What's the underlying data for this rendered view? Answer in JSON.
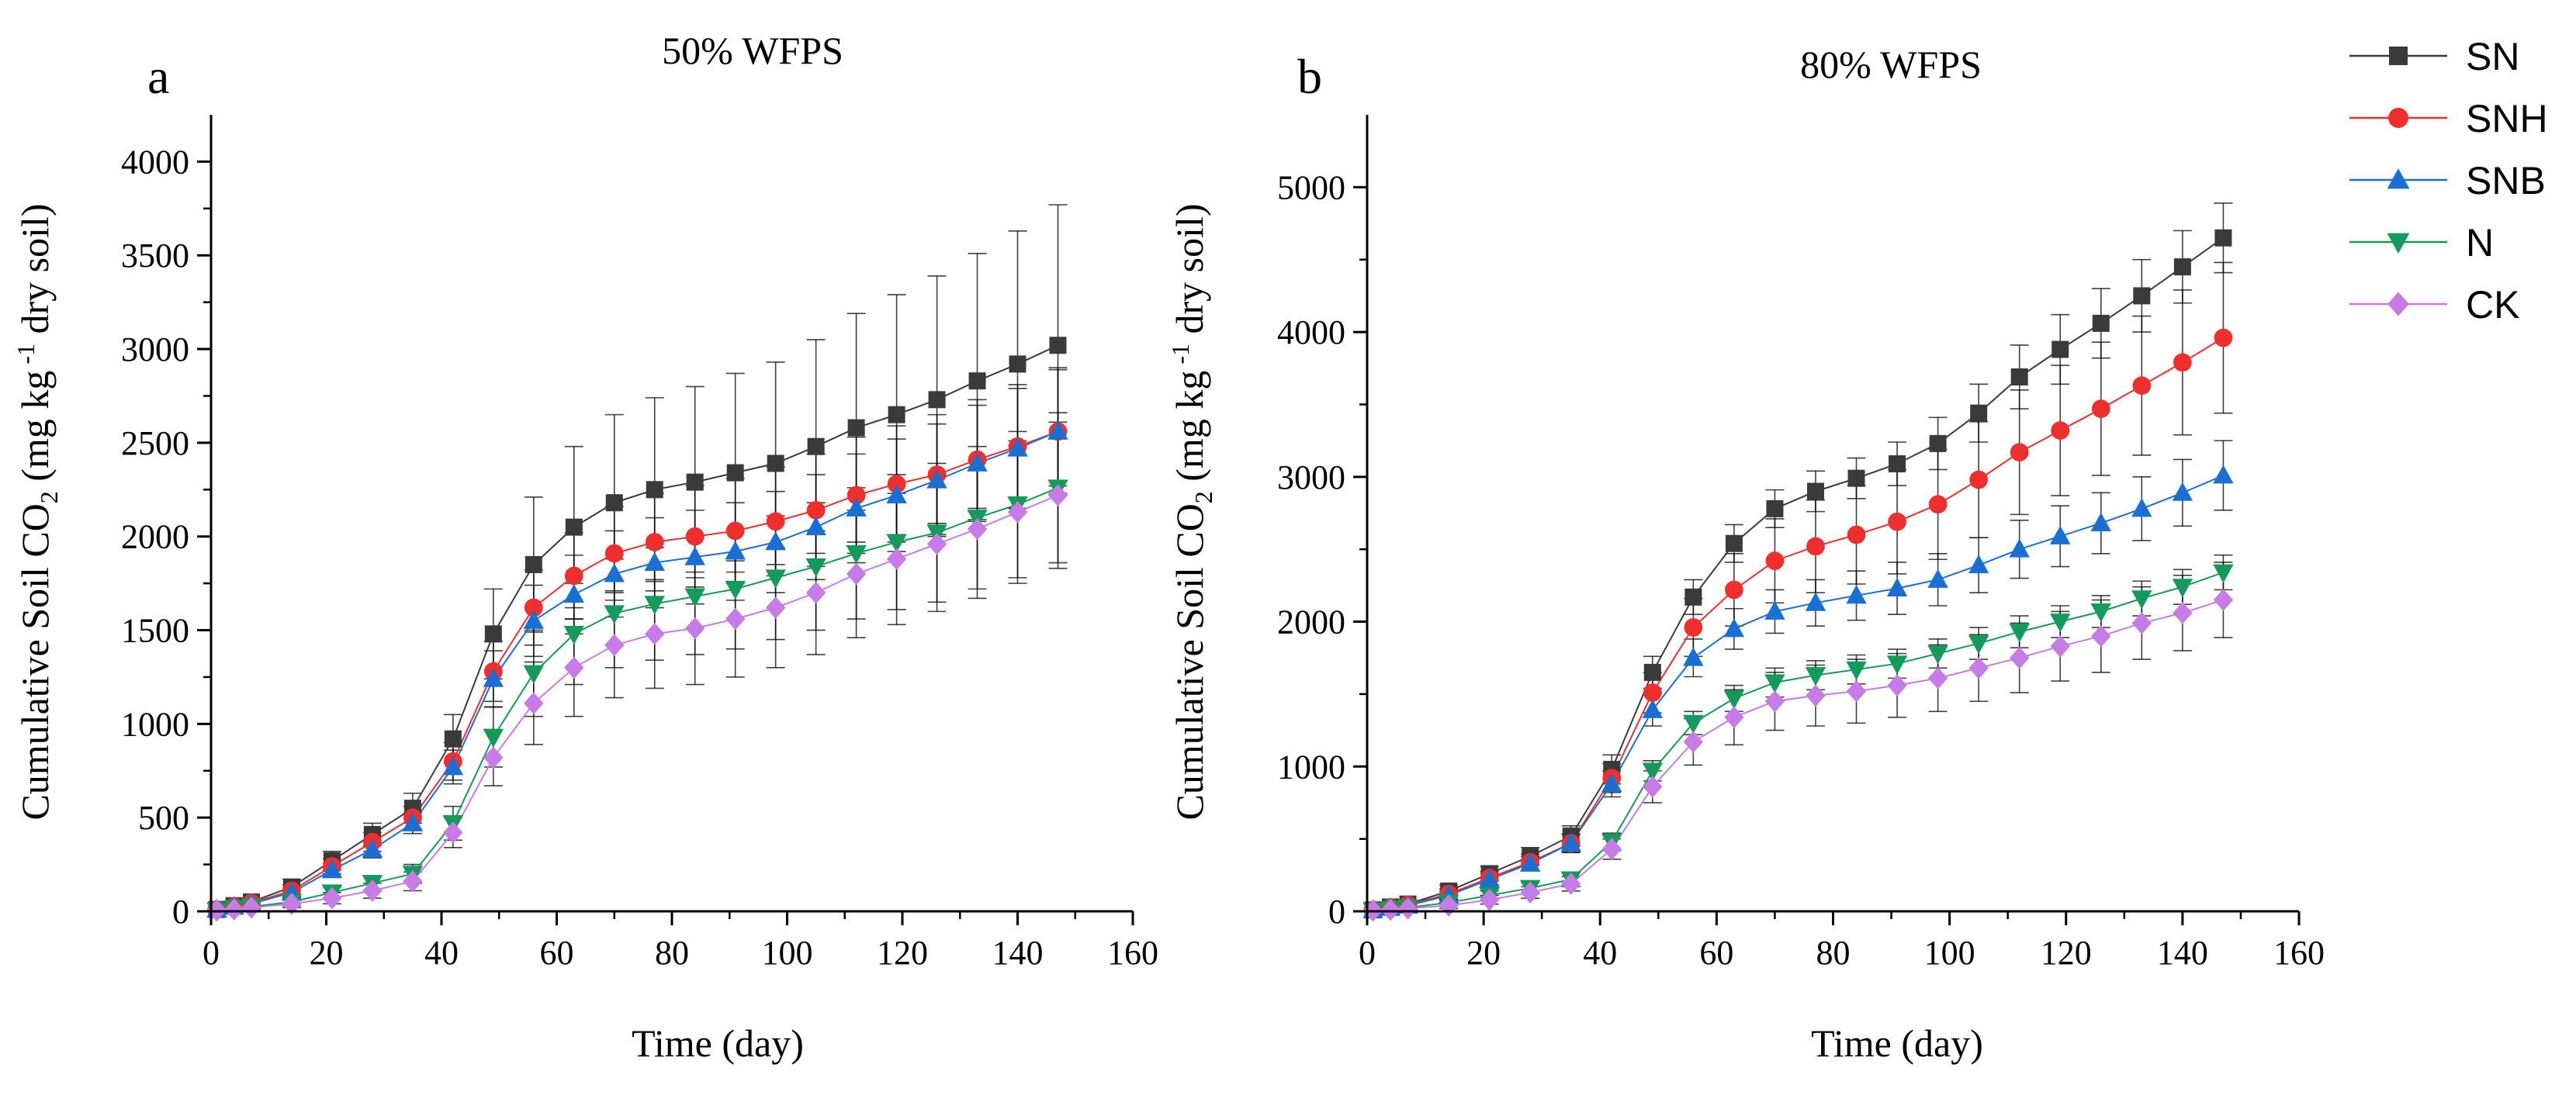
{
  "legend": [
    {
      "name": "SN",
      "color": "#3a3a3a",
      "marker": "square"
    },
    {
      "name": "SNH",
      "color": "#ef2e2e",
      "marker": "circle"
    },
    {
      "name": "SNB",
      "color": "#1a6fd4",
      "marker": "triangle-up"
    },
    {
      "name": "N",
      "color": "#149a5a",
      "marker": "triangle-down"
    },
    {
      "name": "CK",
      "color": "#c67be6",
      "marker": "diamond"
    }
  ],
  "chart_data": [
    {
      "type": "line",
      "panel": "a",
      "title": "50% WFPS",
      "xlabel": "Time (day)",
      "ylabel": {
        "main": "Cumulative Soil CO",
        "sub": "2",
        "mid": " (mg kg",
        "sup": " -1",
        "end": " dry soil)"
      },
      "xlim": [
        0,
        160
      ],
      "ylim": [
        0,
        4250
      ],
      "xticks": [
        0,
        20,
        40,
        60,
        80,
        100,
        120,
        140,
        160
      ],
      "yticks": [
        0,
        500,
        1000,
        1500,
        2000,
        2500,
        3000,
        3500,
        4000
      ],
      "x": [
        1,
        4,
        7,
        14,
        21,
        28,
        35,
        42,
        49,
        56,
        63,
        70,
        77,
        84,
        91,
        98,
        105,
        112,
        119,
        126,
        133,
        140,
        147
      ],
      "series": [
        {
          "name": "SN",
          "values": [
            10,
            30,
            50,
            130,
            270,
            410,
            550,
            920,
            1480,
            1850,
            2050,
            2180,
            2250,
            2290,
            2340,
            2390,
            2480,
            2580,
            2650,
            2730,
            2830,
            2920,
            3020
          ],
          "errors": [
            5,
            10,
            15,
            40,
            50,
            60,
            80,
            130,
            240,
            360,
            430,
            470,
            490,
            510,
            530,
            540,
            570,
            610,
            640,
            660,
            680,
            710,
            750
          ]
        },
        {
          "name": "SNH",
          "values": [
            10,
            25,
            45,
            110,
            240,
            370,
            500,
            800,
            1280,
            1620,
            1790,
            1910,
            1970,
            2000,
            2030,
            2080,
            2140,
            2220,
            2280,
            2330,
            2410,
            2480,
            2560
          ],
          "errors": [
            5,
            8,
            12,
            30,
            40,
            50,
            60,
            100,
            160,
            200,
            230,
            250,
            260,
            270,
            280,
            290,
            300,
            310,
            310,
            320,
            320,
            330,
            340
          ]
        },
        {
          "name": "SNB",
          "values": [
            10,
            25,
            40,
            100,
            220,
            330,
            470,
            770,
            1240,
            1550,
            1690,
            1800,
            1860,
            1890,
            1920,
            1970,
            2050,
            2150,
            2220,
            2300,
            2390,
            2470,
            2560
          ],
          "errors": [
            5,
            8,
            12,
            25,
            35,
            45,
            55,
            90,
            150,
            190,
            210,
            230,
            240,
            250,
            260,
            270,
            280,
            290,
            300,
            300,
            310,
            320,
            330
          ]
        },
        {
          "name": "N",
          "values": [
            5,
            15,
            25,
            50,
            100,
            150,
            200,
            470,
            930,
            1270,
            1480,
            1590,
            1640,
            1680,
            1720,
            1780,
            1840,
            1910,
            1970,
            2020,
            2100,
            2170,
            2260
          ],
          "errors": [
            3,
            5,
            8,
            20,
            30,
            40,
            50,
            90,
            160,
            230,
            270,
            290,
            300,
            310,
            320,
            330,
            340,
            350,
            360,
            370,
            380,
            390,
            400
          ]
        },
        {
          "name": "CK",
          "values": [
            5,
            10,
            20,
            40,
            70,
            110,
            160,
            420,
            820,
            1110,
            1300,
            1420,
            1480,
            1510,
            1560,
            1620,
            1700,
            1800,
            1880,
            1960,
            2040,
            2130,
            2220
          ],
          "errors": [
            3,
            5,
            8,
            20,
            30,
            40,
            50,
            80,
            150,
            220,
            260,
            280,
            290,
            300,
            310,
            320,
            330,
            340,
            350,
            360,
            370,
            380,
            390
          ]
        }
      ]
    },
    {
      "type": "line",
      "panel": "b",
      "title": "80% WFPS",
      "xlabel": "Time (day)",
      "ylabel": {
        "main": "Cumulative Soil CO",
        "sub": "2",
        "mid": " (mg kg",
        "sup": " -1",
        "end": " dry soil)"
      },
      "xlim": [
        0,
        160
      ],
      "ylim": [
        0,
        5500
      ],
      "xticks": [
        0,
        20,
        40,
        60,
        80,
        100,
        120,
        140,
        160
      ],
      "yticks": [
        0,
        1000,
        2000,
        3000,
        4000,
        5000
      ],
      "x": [
        1,
        4,
        7,
        14,
        21,
        28,
        35,
        42,
        49,
        56,
        63,
        70,
        77,
        84,
        91,
        98,
        105,
        112,
        119,
        126,
        133,
        140,
        147
      ],
      "series": [
        {
          "name": "SN",
          "values": [
            10,
            30,
            50,
            140,
            260,
            380,
            520,
            980,
            1650,
            2170,
            2540,
            2780,
            2900,
            2990,
            3090,
            3230,
            3440,
            3690,
            3880,
            4060,
            4250,
            4450,
            4650
          ],
          "errors": [
            5,
            10,
            15,
            40,
            50,
            60,
            70,
            100,
            110,
            120,
            130,
            130,
            140,
            140,
            150,
            180,
            200,
            220,
            240,
            240,
            250,
            250,
            240
          ]
        },
        {
          "name": "SNH",
          "values": [
            10,
            25,
            45,
            120,
            230,
            340,
            470,
            920,
            1510,
            1960,
            2220,
            2420,
            2520,
            2600,
            2690,
            2810,
            2980,
            3170,
            3320,
            3470,
            3630,
            3790,
            3960
          ],
          "errors": [
            5,
            8,
            12,
            35,
            45,
            55,
            65,
            100,
            140,
            200,
            250,
            290,
            320,
            340,
            360,
            380,
            400,
            430,
            450,
            460,
            480,
            500,
            520
          ]
        },
        {
          "name": "SNB",
          "values": [
            10,
            25,
            40,
            110,
            220,
            330,
            470,
            880,
            1390,
            1750,
            1950,
            2070,
            2130,
            2180,
            2230,
            2290,
            2390,
            2500,
            2590,
            2680,
            2780,
            2890,
            3010
          ],
          "errors": [
            5,
            8,
            12,
            30,
            40,
            50,
            60,
            90,
            110,
            130,
            140,
            150,
            160,
            170,
            180,
            180,
            190,
            200,
            210,
            210,
            220,
            230,
            240
          ]
        },
        {
          "name": "N",
          "values": [
            5,
            15,
            25,
            60,
            110,
            160,
            220,
            480,
            970,
            1300,
            1470,
            1580,
            1630,
            1670,
            1710,
            1780,
            1850,
            1930,
            2000,
            2070,
            2160,
            2240,
            2340
          ],
          "errors": [
            3,
            5,
            8,
            20,
            30,
            40,
            50,
            60,
            70,
            80,
            90,
            100,
            100,
            100,
            100,
            100,
            110,
            110,
            110,
            110,
            120,
            120,
            120
          ]
        },
        {
          "name": "CK",
          "values": [
            5,
            10,
            20,
            40,
            80,
            130,
            190,
            430,
            860,
            1170,
            1340,
            1450,
            1490,
            1520,
            1560,
            1610,
            1680,
            1750,
            1830,
            1900,
            1990,
            2060,
            2150
          ],
          "errors": [
            3,
            5,
            8,
            20,
            30,
            40,
            50,
            70,
            110,
            160,
            190,
            200,
            210,
            220,
            220,
            230,
            230,
            240,
            240,
            250,
            250,
            260,
            260
          ]
        }
      ]
    }
  ]
}
